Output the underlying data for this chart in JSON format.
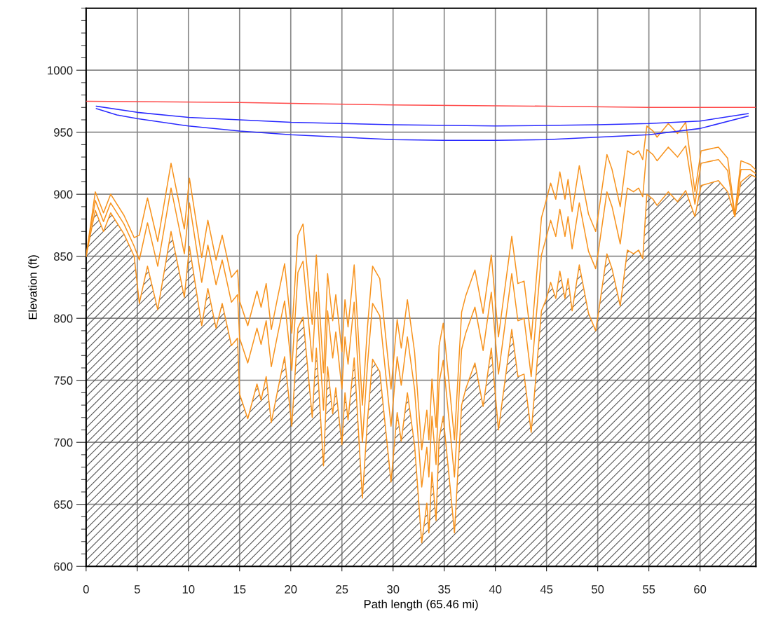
{
  "chart_data": {
    "type": "line",
    "xlabel": "Path length (65.46 mi)",
    "ylabel": "Elevation (ft)",
    "xlim": [
      0,
      65.46
    ],
    "xticks": [
      0,
      5,
      10,
      15,
      20,
      25,
      30,
      35,
      40,
      45,
      50,
      55,
      60
    ],
    "ylim": [
      600,
      1050
    ],
    "yticks": [
      600,
      650,
      700,
      750,
      800,
      850,
      900,
      950,
      1000
    ],
    "grid": true,
    "x": [
      0,
      0.9,
      1.7,
      2.4,
      3.7,
      4.7,
      5.2,
      6.0,
      7.0,
      8.3,
      9.6,
      10.1,
      11.3,
      11.9,
      12.7,
      13.3,
      14.2,
      14.8,
      15.0,
      15.8,
      16.7,
      17.1,
      17.6,
      18.1,
      18.7,
      19.4,
      20.1,
      20.7,
      21.2,
      22.1,
      22.5,
      23.2,
      23.6,
      24.1,
      24.4,
      25.0,
      25.3,
      25.6,
      26.2,
      27.0,
      27.5,
      28.0,
      28.7,
      29.8,
      30.4,
      30.8,
      31.4,
      32.1,
      32.8,
      33.3,
      33.5,
      33.8,
      34.2,
      34.5,
      34.9,
      35.6,
      36.0,
      36.7,
      37.1,
      38.0,
      38.8,
      39.6,
      40.3,
      41.6,
      42.2,
      42.8,
      43.5,
      44.5,
      45.0,
      45.4,
      45.9,
      46.3,
      46.8,
      47.1,
      47.5,
      48.2,
      49.1,
      49.8,
      50.1,
      50.9,
      51.4,
      52.2,
      52.9,
      53.5,
      54.0,
      54.4,
      54.8,
      55.4,
      55.8,
      56.9,
      57.8,
      58.6,
      59.5,
      60.1,
      61.8,
      62.7,
      63.4,
      64.0,
      64.9,
      65.4
    ],
    "series": [
      {
        "type": "area",
        "color": "#f7931e",
        "values": [
          850,
          887,
          870,
          885,
          868,
          850,
          812,
          842,
          807,
          870,
          817,
          858,
          794,
          824,
          792,
          812,
          778,
          784,
          739,
          719,
          747,
          734,
          753,
          716,
          741,
          769,
          713,
          792,
          801,
          720,
          776,
          681,
          761,
          723,
          744,
          698,
          740,
          718,
          768,
          655,
          718,
          767,
          757,
          668,
          724,
          701,
          740,
          698,
          619,
          651,
          627,
          676,
          637,
          703,
          721,
          662,
          627,
          730,
          743,
          764,
          729,
          776,
          710,
          791,
          753,
          755,
          708,
          806,
          816,
          829,
          816,
          838,
          816,
          832,
          806,
          843,
          804,
          790,
          806,
          852,
          840,
          810,
          855,
          852,
          855,
          848,
          900,
          896,
          891,
          902,
          894,
          903,
          882,
          907,
          911,
          902,
          882,
          910,
          916,
          914
        ]
      },
      {
        "color": "#f7931e",
        "values": [
          850,
          895,
          878,
          893,
          876,
          858,
          847,
          877,
          842,
          905,
          852,
          893,
          829,
          859,
          827,
          847,
          813,
          819,
          784,
          764,
          792,
          779,
          798,
          761,
          786,
          814,
          758,
          837,
          846,
          765,
          821,
          726,
          806,
          768,
          789,
          743,
          785,
          763,
          813,
          700,
          763,
          812,
          802,
          713,
          769,
          746,
          785,
          743,
          664,
          696,
          672,
          721,
          682,
          748,
          766,
          707,
          672,
          775,
          788,
          809,
          774,
          821,
          755,
          836,
          798,
          800,
          753,
          851,
          866,
          879,
          866,
          888,
          866,
          882,
          856,
          893,
          854,
          840,
          856,
          902,
          890,
          860,
          905,
          902,
          905,
          898,
          936,
          932,
          927,
          938,
          930,
          939,
          892,
          925,
          928,
          919,
          882,
          920,
          920,
          917
        ]
      },
      {
        "color": "#f7931e",
        "values": [
          850,
          902,
          885,
          900,
          883,
          865,
          867,
          897,
          862,
          925,
          872,
          913,
          849,
          879,
          847,
          867,
          833,
          839,
          814,
          794,
          822,
          809,
          828,
          791,
          816,
          844,
          788,
          867,
          876,
          795,
          851,
          756,
          836,
          798,
          819,
          773,
          815,
          793,
          843,
          730,
          793,
          842,
          832,
          743,
          799,
          776,
          815,
          773,
          694,
          726,
          702,
          751,
          712,
          778,
          796,
          737,
          702,
          805,
          818,
          839,
          804,
          851,
          785,
          866,
          828,
          830,
          783,
          881,
          896,
          909,
          896,
          918,
          896,
          912,
          886,
          923,
          884,
          870,
          886,
          932,
          920,
          890,
          935,
          932,
          935,
          928,
          955,
          951,
          946,
          957,
          949,
          958,
          902,
          935,
          938,
          929,
          884,
          927,
          924,
          920
        ]
      },
      {
        "color": "#ff4a4a",
        "x": [
          0,
          15,
          22,
          30,
          45,
          55,
          65.4
        ],
        "values": [
          975,
          974,
          973,
          972,
          971,
          970,
          970
        ]
      },
      {
        "color": "#2a2aff",
        "x": [
          1,
          5,
          10,
          15,
          20,
          25,
          30,
          40,
          50,
          55,
          60,
          64.7
        ],
        "values": [
          971,
          966,
          962,
          960,
          958,
          957,
          956,
          955,
          956,
          957,
          959,
          965
        ]
      },
      {
        "color": "#2a2aff",
        "x": [
          1,
          3,
          5,
          10,
          15,
          20,
          25,
          30,
          35,
          40,
          45,
          50,
          55,
          60,
          64.7
        ],
        "values": [
          969,
          964,
          961,
          955,
          951,
          948,
          946,
          944,
          943.5,
          943.5,
          944,
          946,
          948,
          953,
          963
        ]
      }
    ]
  }
}
